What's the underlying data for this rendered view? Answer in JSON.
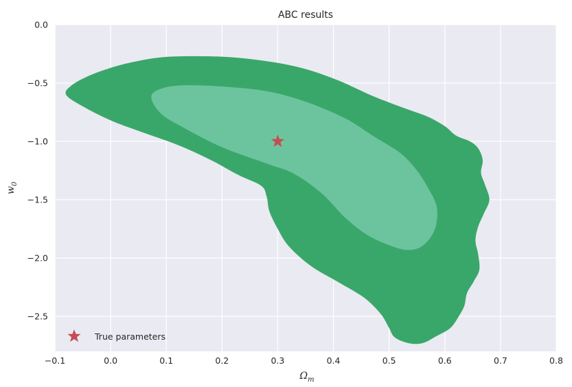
{
  "chart_data": {
    "type": "contour",
    "title": "ABC results",
    "xlabel": "Ω",
    "xlabel_sub": "m",
    "ylabel": "w",
    "ylabel_sub": "0",
    "xlim": [
      -0.1,
      0.8
    ],
    "ylim": [
      -2.8,
      0.0
    ],
    "xticks": [
      -0.1,
      0.0,
      0.1,
      0.2,
      0.3,
      0.4,
      0.5,
      0.6,
      0.7,
      0.8
    ],
    "xtick_labels": [
      "−0.1",
      "0.0",
      "0.1",
      "0.2",
      "0.3",
      "0.4",
      "0.5",
      "0.6",
      "0.7",
      "0.8"
    ],
    "yticks": [
      0.0,
      -0.5,
      -1.0,
      -1.5,
      -2.0,
      -2.5
    ],
    "ytick_labels": [
      "0.0",
      "−0.5",
      "−1.0",
      "−1.5",
      "−2.0",
      "−2.5"
    ],
    "grid": true,
    "background": "#eaeaf2",
    "contours": [
      {
        "level": "outer",
        "color": "#3aa76a",
        "points": [
          [
            -0.07,
            -0.52
          ],
          [
            -0.04,
            -0.44
          ],
          [
            0.0,
            -0.37
          ],
          [
            0.04,
            -0.32
          ],
          [
            0.09,
            -0.28
          ],
          [
            0.15,
            -0.27
          ],
          [
            0.22,
            -0.28
          ],
          [
            0.29,
            -0.32
          ],
          [
            0.35,
            -0.38
          ],
          [
            0.41,
            -0.48
          ],
          [
            0.47,
            -0.61
          ],
          [
            0.53,
            -0.72
          ],
          [
            0.57,
            -0.79
          ],
          [
            0.6,
            -0.87
          ],
          [
            0.62,
            -0.95
          ],
          [
            0.645,
            -1.0
          ],
          [
            0.66,
            -1.06
          ],
          [
            0.668,
            -1.16
          ],
          [
            0.665,
            -1.27
          ],
          [
            0.672,
            -1.37
          ],
          [
            0.68,
            -1.5
          ],
          [
            0.67,
            -1.62
          ],
          [
            0.66,
            -1.73
          ],
          [
            0.655,
            -1.85
          ],
          [
            0.66,
            -1.97
          ],
          [
            0.662,
            -2.1
          ],
          [
            0.652,
            -2.2
          ],
          [
            0.64,
            -2.3
          ],
          [
            0.635,
            -2.41
          ],
          [
            0.625,
            -2.5
          ],
          [
            0.61,
            -2.6
          ],
          [
            0.585,
            -2.67
          ],
          [
            0.56,
            -2.73
          ],
          [
            0.535,
            -2.73
          ],
          [
            0.51,
            -2.68
          ],
          [
            0.5,
            -2.6
          ],
          [
            0.485,
            -2.48
          ],
          [
            0.455,
            -2.34
          ],
          [
            0.41,
            -2.21
          ],
          [
            0.36,
            -2.07
          ],
          [
            0.32,
            -1.9
          ],
          [
            0.3,
            -1.75
          ],
          [
            0.285,
            -1.6
          ],
          [
            0.28,
            -1.47
          ],
          [
            0.27,
            -1.38
          ],
          [
            0.23,
            -1.29
          ],
          [
            0.18,
            -1.16
          ],
          [
            0.12,
            -1.03
          ],
          [
            0.05,
            -0.91
          ],
          [
            0.0,
            -0.82
          ],
          [
            -0.05,
            -0.7
          ],
          [
            -0.08,
            -0.6
          ]
        ]
      },
      {
        "level": "inner",
        "color": "#6cc49e",
        "points": [
          [
            0.073,
            -0.62
          ],
          [
            0.09,
            -0.55
          ],
          [
            0.13,
            -0.52
          ],
          [
            0.2,
            -0.53
          ],
          [
            0.28,
            -0.57
          ],
          [
            0.35,
            -0.66
          ],
          [
            0.42,
            -0.8
          ],
          [
            0.47,
            -0.95
          ],
          [
            0.52,
            -1.1
          ],
          [
            0.55,
            -1.25
          ],
          [
            0.57,
            -1.4
          ],
          [
            0.585,
            -1.55
          ],
          [
            0.585,
            -1.7
          ],
          [
            0.575,
            -1.82
          ],
          [
            0.555,
            -1.91
          ],
          [
            0.53,
            -1.93
          ],
          [
            0.5,
            -1.89
          ],
          [
            0.46,
            -1.8
          ],
          [
            0.42,
            -1.65
          ],
          [
            0.38,
            -1.45
          ],
          [
            0.33,
            -1.28
          ],
          [
            0.28,
            -1.19
          ],
          [
            0.2,
            -1.05
          ],
          [
            0.13,
            -0.88
          ],
          [
            0.09,
            -0.76
          ]
        ]
      }
    ],
    "markers": [
      {
        "name": "True parameters",
        "x": 0.3,
        "y": -1.0,
        "symbol": "star",
        "color": "#c44e52"
      }
    ],
    "legend": {
      "location": "lower-left",
      "entries": [
        {
          "label": "True parameters",
          "symbol": "star",
          "color": "#c44e52"
        }
      ]
    }
  }
}
